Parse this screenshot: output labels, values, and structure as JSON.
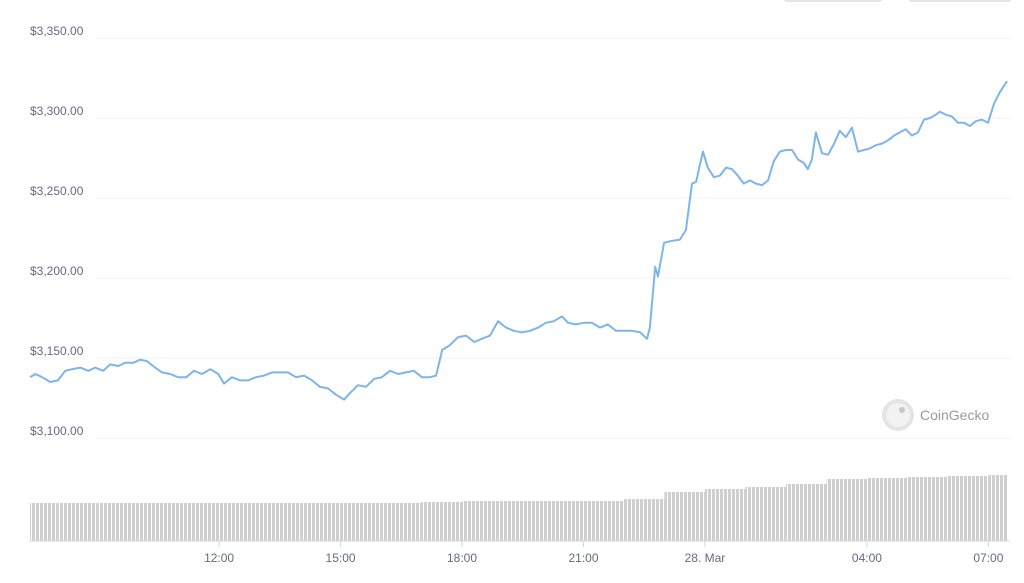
{
  "chart_data": {
    "type": "line",
    "watermark": "CoinGecko",
    "color": "#7cb5ec",
    "x": [
      7.33,
      7.46,
      7.63,
      7.83,
      8.02,
      8.2,
      8.37,
      8.57,
      8.77,
      8.94,
      9.14,
      9.31,
      9.51,
      9.68,
      9.88,
      10.05,
      10.22,
      10.42,
      10.59,
      10.79,
      10.99,
      11.19,
      11.38,
      11.58,
      11.78,
      11.98,
      12.12,
      12.32,
      12.52,
      12.72,
      12.91,
      13.11,
      13.31,
      13.51,
      13.7,
      13.9,
      14.1,
      14.3,
      14.49,
      14.69,
      14.89,
      15.09,
      15.23,
      15.43,
      15.63,
      15.83,
      16.02,
      16.22,
      16.42,
      16.62,
      16.81,
      17.01,
      17.21,
      17.36,
      17.51,
      17.7,
      17.9,
      18.1,
      18.3,
      18.49,
      18.69,
      18.89,
      19.09,
      19.28,
      19.48,
      19.68,
      19.88,
      20.07,
      20.27,
      20.47,
      20.62,
      20.81,
      21.01,
      21.21,
      21.41,
      21.6,
      21.8,
      22.0,
      22.2,
      22.4,
      22.57,
      22.64,
      22.77,
      22.84,
      22.99,
      23.14,
      23.38,
      23.53,
      23.68,
      23.78,
      23.95,
      24.07,
      24.22,
      24.37,
      24.52,
      24.67,
      24.81,
      24.96,
      25.11,
      25.26,
      25.41,
      25.56,
      25.7,
      25.85,
      26.0,
      26.15,
      26.3,
      26.44,
      26.54,
      26.64,
      26.74,
      26.89,
      27.04,
      27.19,
      27.33,
      27.48,
      27.63,
      27.78,
      27.93,
      28.07,
      28.22,
      28.37,
      28.52,
      28.67,
      28.81,
      28.96,
      29.11,
      29.26,
      29.41,
      29.56,
      29.7,
      29.8,
      29.95,
      30.1,
      30.25,
      30.4,
      30.54,
      30.69,
      30.84,
      30.99,
      31.14,
      31.28,
      31.46
    ],
    "values": [
      3138,
      3140,
      3138,
      3135,
      3136,
      3142,
      3143,
      3144,
      3142,
      3144,
      3142,
      3146,
      3145,
      3147,
      3147,
      3149,
      3148,
      3144,
      3141,
      3140,
      3138,
      3138,
      3142,
      3140,
      3143,
      3140,
      3134,
      3138,
      3136,
      3136,
      3138,
      3139,
      3141,
      3141,
      3141,
      3138,
      3139,
      3136,
      3132,
      3131,
      3127,
      3124,
      3128,
      3133,
      3132,
      3137,
      3138,
      3142,
      3140,
      3141,
      3142,
      3138,
      3138,
      3139,
      3155,
      3158,
      3163,
      3164,
      3160,
      3162,
      3164,
      3173,
      3169,
      3167,
      3166,
      3167,
      3169,
      3172,
      3173,
      3176,
      3172,
      3171,
      3172,
      3172,
      3169,
      3171,
      3167,
      3167,
      3167,
      3166,
      3162,
      3169,
      3207,
      3201,
      3222,
      3223,
      3224,
      3230,
      3259,
      3260,
      3279,
      3269,
      3263,
      3264,
      3269,
      3268,
      3264,
      3259,
      3261,
      3259,
      3258,
      3261,
      3273,
      3279,
      3280,
      3280,
      3274,
      3272,
      3268,
      3274,
      3291,
      3278,
      3277,
      3284,
      3292,
      3288,
      3294,
      3279,
      3280,
      3281,
      3283,
      3284,
      3286,
      3289,
      3291,
      3293,
      3289,
      3291,
      3299,
      3300,
      3302,
      3304,
      3302,
      3301,
      3297,
      3297,
      3295,
      3298,
      3299,
      3297,
      3309,
      3316,
      3323
    ],
    "volume": {
      "color": "#cfcfcf",
      "x": [
        7.33,
        8,
        9,
        10,
        11,
        12,
        13,
        14,
        15,
        16,
        17,
        18,
        19,
        20,
        21,
        22,
        23,
        24,
        25,
        26,
        27,
        28,
        29,
        30,
        31
      ],
      "values": [
        38,
        38,
        38,
        38,
        38,
        38,
        38,
        38,
        38,
        38,
        39,
        40,
        40,
        40,
        40,
        42,
        49,
        52,
        54,
        57,
        62,
        63,
        64,
        65,
        66
      ]
    },
    "y2lim": [
      0,
      70
    ],
    "xlim": [
      7.33,
      31.46
    ],
    "xticks": [
      {
        "value": 12,
        "label": "12:00"
      },
      {
        "value": 15,
        "label": "15:00"
      },
      {
        "value": 18,
        "label": "18:00"
      },
      {
        "value": 21,
        "label": "21:00"
      },
      {
        "value": 24,
        "label": "28. Mar"
      },
      {
        "value": 28,
        "label": "04:00"
      },
      {
        "value": 31,
        "label": "07:00"
      }
    ],
    "ylim": [
      3100,
      3350
    ],
    "yticks": [
      {
        "value": 3100,
        "label": "$3,100.00"
      },
      {
        "value": 3150,
        "label": "$3,150.00"
      },
      {
        "value": 3200,
        "label": "$3,200.00"
      },
      {
        "value": 3250,
        "label": "$3,250.00"
      },
      {
        "value": 3300,
        "label": "$3,300.00"
      },
      {
        "value": 3350,
        "label": "$3,350.00"
      }
    ],
    "grid": true
  }
}
